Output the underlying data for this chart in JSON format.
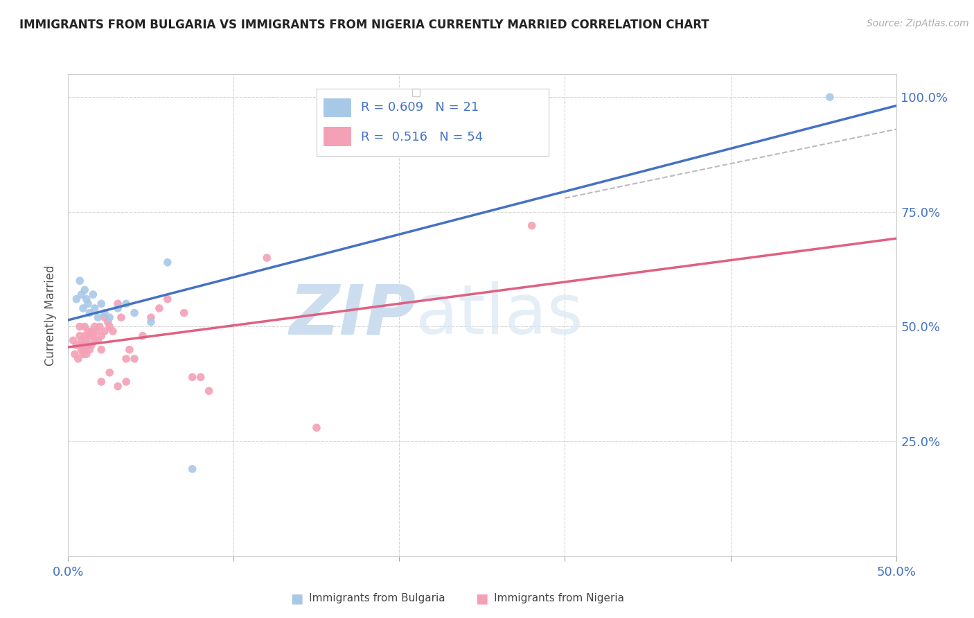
{
  "title": "IMMIGRANTS FROM BULGARIA VS IMMIGRANTS FROM NIGERIA CURRENTLY MARRIED CORRELATION CHART",
  "source": "Source: ZipAtlas.com",
  "ylabel_label": "Currently Married",
  "x_min": 0.0,
  "x_max": 0.5,
  "y_min": 0.0,
  "y_max": 1.05,
  "bulgaria_color": "#a8c8e8",
  "nigeria_color": "#f4a0b5",
  "bulgaria_line_color": "#4472c4",
  "nigeria_line_color": "#e06080",
  "r_bulgaria": 0.609,
  "n_bulgaria": 21,
  "r_nigeria": 0.516,
  "n_nigeria": 54,
  "bg_color": "#ffffff",
  "grid_color": "#cccccc",
  "title_color": "#222222",
  "tick_label_color": "#4472c4",
  "bulgaria_points": [
    [
      0.005,
      0.56
    ],
    [
      0.007,
      0.6
    ],
    [
      0.008,
      0.57
    ],
    [
      0.009,
      0.54
    ],
    [
      0.01,
      0.58
    ],
    [
      0.011,
      0.56
    ],
    [
      0.012,
      0.55
    ],
    [
      0.013,
      0.53
    ],
    [
      0.015,
      0.57
    ],
    [
      0.016,
      0.54
    ],
    [
      0.018,
      0.52
    ],
    [
      0.02,
      0.55
    ],
    [
      0.022,
      0.53
    ],
    [
      0.025,
      0.52
    ],
    [
      0.03,
      0.54
    ],
    [
      0.035,
      0.55
    ],
    [
      0.04,
      0.53
    ],
    [
      0.05,
      0.51
    ],
    [
      0.06,
      0.64
    ],
    [
      0.075,
      0.19
    ],
    [
      0.46,
      1.0
    ]
  ],
  "nigeria_points": [
    [
      0.003,
      0.47
    ],
    [
      0.004,
      0.44
    ],
    [
      0.005,
      0.46
    ],
    [
      0.006,
      0.43
    ],
    [
      0.007,
      0.5
    ],
    [
      0.007,
      0.48
    ],
    [
      0.008,
      0.47
    ],
    [
      0.008,
      0.45
    ],
    [
      0.009,
      0.46
    ],
    [
      0.009,
      0.44
    ],
    [
      0.01,
      0.5
    ],
    [
      0.01,
      0.48
    ],
    [
      0.01,
      0.45
    ],
    [
      0.011,
      0.47
    ],
    [
      0.011,
      0.44
    ],
    [
      0.012,
      0.49
    ],
    [
      0.012,
      0.46
    ],
    [
      0.013,
      0.48
    ],
    [
      0.013,
      0.45
    ],
    [
      0.014,
      0.49
    ],
    [
      0.014,
      0.46
    ],
    [
      0.015,
      0.48
    ],
    [
      0.016,
      0.5
    ],
    [
      0.016,
      0.47
    ],
    [
      0.017,
      0.49
    ],
    [
      0.018,
      0.47
    ],
    [
      0.019,
      0.5
    ],
    [
      0.02,
      0.48
    ],
    [
      0.02,
      0.45
    ],
    [
      0.022,
      0.52
    ],
    [
      0.022,
      0.49
    ],
    [
      0.024,
      0.51
    ],
    [
      0.025,
      0.5
    ],
    [
      0.027,
      0.49
    ],
    [
      0.03,
      0.55
    ],
    [
      0.032,
      0.52
    ],
    [
      0.035,
      0.43
    ],
    [
      0.037,
      0.45
    ],
    [
      0.04,
      0.43
    ],
    [
      0.045,
      0.48
    ],
    [
      0.05,
      0.52
    ],
    [
      0.055,
      0.54
    ],
    [
      0.06,
      0.56
    ],
    [
      0.07,
      0.53
    ],
    [
      0.075,
      0.39
    ],
    [
      0.08,
      0.39
    ],
    [
      0.085,
      0.36
    ],
    [
      0.02,
      0.38
    ],
    [
      0.025,
      0.4
    ],
    [
      0.03,
      0.37
    ],
    [
      0.035,
      0.38
    ],
    [
      0.12,
      0.65
    ],
    [
      0.28,
      0.72
    ],
    [
      0.15,
      0.28
    ]
  ]
}
